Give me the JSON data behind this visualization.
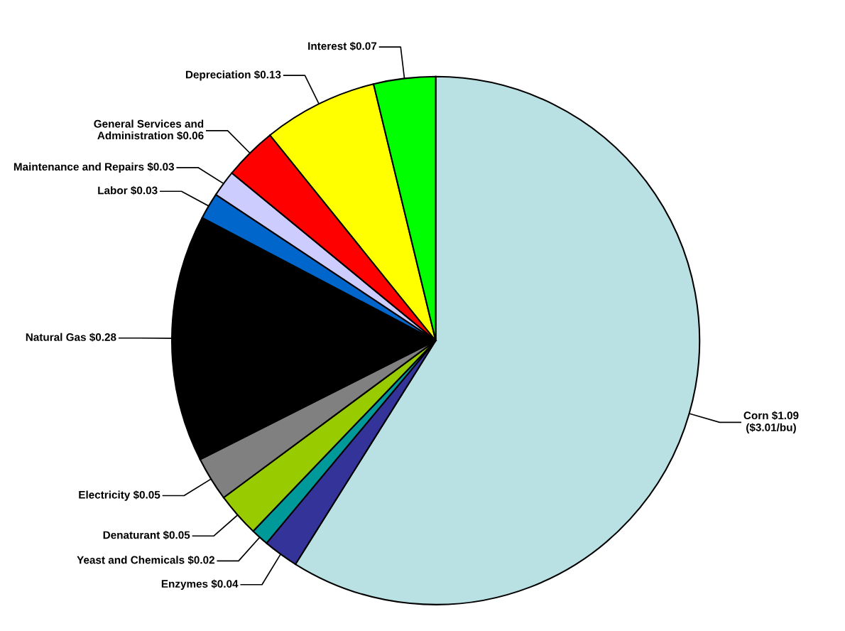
{
  "chart_data": {
    "type": "pie",
    "categories": [
      "Corn",
      "Enzymes",
      "Yeast and Chemicals",
      "Denaturant",
      "Electricity",
      "Natural Gas",
      "Labor",
      "Maintenance and Repairs",
      "General Services and\nAdministration",
      "Depreciation",
      "Interest"
    ],
    "values": [
      1.09,
      0.04,
      0.02,
      0.05,
      0.05,
      0.28,
      0.03,
      0.03,
      0.06,
      0.13,
      0.07
    ],
    "value_labels": [
      "$1.09\n($3.01/bu)",
      "$0.04",
      "$0.02",
      "$0.05",
      "$0.05",
      "$0.28",
      "$0.03",
      "$0.03",
      "$0.06",
      "$0.13",
      "$0.07"
    ],
    "colors": [
      "#b9e0e3",
      "#333399",
      "#009999",
      "#99cc00",
      "#808080",
      "#000000",
      "#0066cc",
      "#ccccff",
      "#ff0000",
      "#ffff00",
      "#00ff00"
    ],
    "legend": false
  }
}
